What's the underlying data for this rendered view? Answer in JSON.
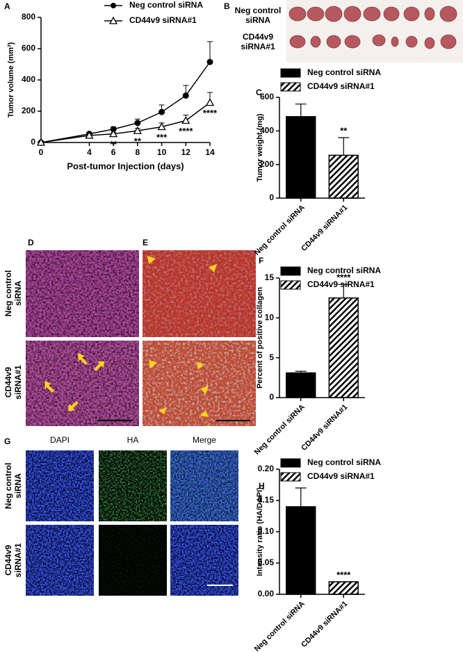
{
  "panel_labels": [
    "A",
    "B",
    "C",
    "D",
    "E",
    "F",
    "G",
    "H"
  ],
  "images": {
    "tumors": {
      "rows": [
        "Neg control siRNA",
        "CD44v9 siRNA#1"
      ]
    },
    "histology": {
      "rows": [
        "Neg control siRNA",
        "CD44v9 siRNA#1"
      ]
    },
    "fluorescence": {
      "columns": [
        "DAPI",
        "HA",
        "Merge"
      ],
      "rows": [
        "Neg control siRNA",
        "CD44v9 siRNA#1"
      ]
    }
  },
  "chart_data": [
    {
      "type": "line",
      "x_label": "Post-tumor Injection (days)",
      "y_label": "Tumor volume (mm³)",
      "x": [
        0,
        4,
        6,
        8,
        10,
        12,
        14
      ],
      "xlim": [
        0,
        14
      ],
      "xticks": [
        0,
        4,
        6,
        8,
        10,
        12,
        14
      ],
      "ylim": [
        0,
        800
      ],
      "yticks": [
        0,
        200,
        400,
        600,
        800
      ],
      "series": [
        {
          "name": "Neg control siRNA",
          "color": "#000000",
          "marker": "circle",
          "values": [
            0,
            55,
            85,
            125,
            195,
            300,
            515
          ],
          "errors": [
            0,
            10,
            15,
            25,
            45,
            65,
            130
          ]
        },
        {
          "name": "CD44v9 siRNA#1",
          "color": "#000000",
          "marker": "triangle-open",
          "values": [
            0,
            45,
            55,
            75,
            100,
            140,
            255
          ],
          "errors": [
            0,
            8,
            10,
            15,
            25,
            35,
            65
          ]
        }
      ],
      "annotations": [
        {
          "x": 6,
          "text": "**"
        },
        {
          "x": 8,
          "text": "**"
        },
        {
          "x": 10,
          "text": "***"
        },
        {
          "x": 12,
          "text": "****"
        },
        {
          "x": 14,
          "text": "****"
        }
      ]
    },
    {
      "type": "bar",
      "y_label": "Tumor weight (mg)",
      "categories": [
        "Neg control siRNA",
        "CD44v9 siRNA#1"
      ],
      "values": [
        485,
        255
      ],
      "errors": [
        75,
        105
      ],
      "fills": [
        "#000000",
        "hatch"
      ],
      "ylim": [
        0,
        600
      ],
      "yticks": [
        0,
        200,
        400,
        600
      ],
      "legend": true,
      "annotations": [
        {
          "category": "CD44v9 siRNA#1",
          "text": "**"
        }
      ]
    },
    {
      "type": "bar",
      "y_label": "Percent of positive collagen",
      "categories": [
        "Neg control siRNA",
        "CD44v9 siRNA#1"
      ],
      "values": [
        3.1,
        12.5
      ],
      "errors": [
        0.2,
        1.7
      ],
      "fills": [
        "#000000",
        "hatch"
      ],
      "ylim": [
        0,
        15
      ],
      "yticks": [
        0,
        5,
        10,
        15
      ],
      "legend": true,
      "annotations": [
        {
          "category": "CD44v9 siRNA#1",
          "text": "****"
        }
      ]
    },
    {
      "type": "bar",
      "y_label": "Intensity ratio (HA/DAPI)",
      "categories": [
        "Neg control siRNA",
        "CD44v9 siRNA#1"
      ],
      "values": [
        0.14,
        0.02
      ],
      "errors": [
        0.03,
        0
      ],
      "fills": [
        "#000000",
        "hatch"
      ],
      "ylim": [
        0,
        0.2
      ],
      "yticks": [
        {
          "value": 0,
          "label": "0.00"
        },
        {
          "value": 0.05,
          "label": "0.05"
        },
        {
          "value": 0.1,
          "label": "0.10"
        },
        {
          "value": 0.15,
          "label": "0.15"
        },
        {
          "value": 0.2,
          "label": "0.20"
        }
      ],
      "legend": true,
      "annotations": [
        {
          "category": "CD44v9 siRNA#1",
          "text": "****"
        }
      ]
    }
  ]
}
